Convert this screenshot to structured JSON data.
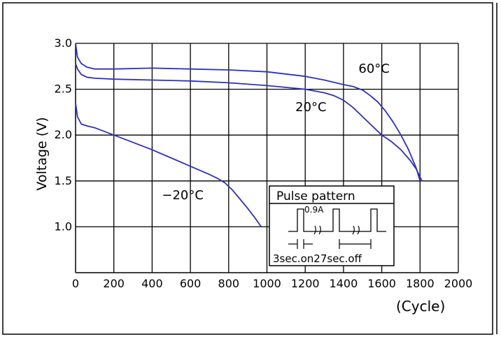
{
  "chart_data": {
    "type": "line",
    "title": "",
    "xlabel": "(Cycle)",
    "ylabel": "Voltage (V)",
    "xlim": [
      0,
      2000
    ],
    "ylim": [
      0.5,
      3.0
    ],
    "grid": true,
    "x_ticks": [
      0,
      200,
      400,
      600,
      800,
      1000,
      1200,
      1400,
      1600,
      1800,
      2000
    ],
    "x_tick_labels": [
      "0",
      "200",
      "400",
      "600",
      "800",
      "1000",
      "1200",
      "1400",
      "1600",
      "1800",
      "2000"
    ],
    "y_ticks": [
      1.0,
      1.5,
      2.0,
      2.5,
      3.0
    ],
    "y_tick_labels": [
      "1.0",
      "1.5",
      "2.0",
      "2.5",
      "3.0"
    ],
    "line_color": "#2f2fbf",
    "series": [
      {
        "name": "60°C",
        "x": [
          0,
          10,
          30,
          60,
          100,
          150,
          200,
          400,
          600,
          800,
          1000,
          1200,
          1300,
          1400,
          1450,
          1500,
          1540,
          1580,
          1620,
          1660,
          1700,
          1740,
          1780,
          1800
        ],
        "y": [
          3.0,
          2.85,
          2.78,
          2.74,
          2.72,
          2.72,
          2.72,
          2.73,
          2.72,
          2.71,
          2.69,
          2.64,
          2.6,
          2.55,
          2.53,
          2.49,
          2.43,
          2.36,
          2.26,
          2.14,
          2.0,
          1.84,
          1.64,
          1.5
        ]
      },
      {
        "name": "20°C",
        "x": [
          0,
          10,
          30,
          60,
          100,
          200,
          400,
          600,
          800,
          1000,
          1100,
          1200,
          1300,
          1350,
          1400,
          1450,
          1500,
          1550,
          1600,
          1650,
          1700,
          1750,
          1780,
          1810
        ],
        "y": [
          2.78,
          2.72,
          2.66,
          2.63,
          2.62,
          2.61,
          2.6,
          2.59,
          2.57,
          2.54,
          2.52,
          2.5,
          2.46,
          2.43,
          2.38,
          2.3,
          2.2,
          2.1,
          2.0,
          1.93,
          1.84,
          1.72,
          1.63,
          1.5
        ]
      },
      {
        "name": "-20°C",
        "x": [
          0,
          10,
          30,
          60,
          100,
          200,
          300,
          400,
          500,
          600,
          700,
          740,
          780,
          820,
          860,
          900,
          940,
          970
        ],
        "y": [
          2.35,
          2.2,
          2.12,
          2.1,
          2.08,
          2.0,
          1.92,
          1.84,
          1.75,
          1.66,
          1.57,
          1.53,
          1.48,
          1.4,
          1.3,
          1.2,
          1.09,
          1.0
        ]
      }
    ],
    "annotations": [
      {
        "text": "60°C",
        "x": 1560,
        "y": 2.68
      },
      {
        "text": "20°C",
        "x": 1230,
        "y": 2.26
      },
      {
        "text": "−20°C",
        "x": 560,
        "y": 1.3
      }
    ],
    "inset": {
      "title": "Pulse pattern",
      "current_label": "0.9A",
      "caption": "3sec.on27sec.off"
    }
  }
}
